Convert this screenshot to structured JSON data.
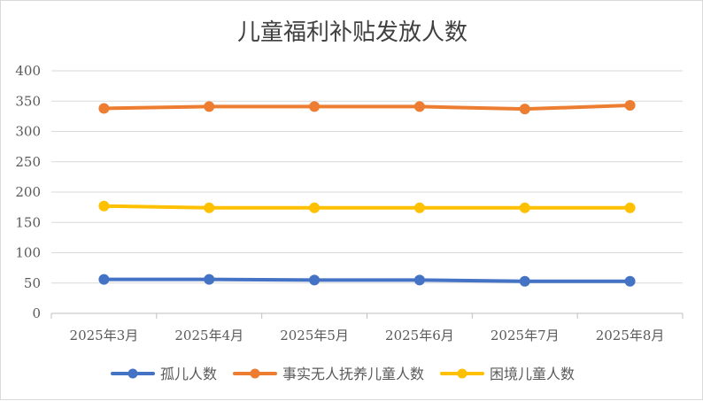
{
  "chart_data": {
    "type": "line",
    "title": "儿童福利补贴发放人数",
    "xlabel": "",
    "ylabel": "",
    "categories": [
      "2025年3月",
      "2025年4月",
      "2025年5月",
      "2025年6月",
      "2025年7月",
      "2025年8月"
    ],
    "ylim": [
      0,
      400
    ],
    "yticks": [
      0,
      50,
      100,
      150,
      200,
      250,
      300,
      350,
      400
    ],
    "grid": true,
    "legend_position": "bottom",
    "series": [
      {
        "name": "孤儿人数",
        "color": "#4472C4",
        "values": [
          56,
          56,
          55,
          55,
          53,
          53
        ]
      },
      {
        "name": "事实无人抚养儿童人数",
        "color": "#ED7D31",
        "values": [
          338,
          341,
          341,
          341,
          337,
          343
        ]
      },
      {
        "name": "困境儿童人数",
        "color": "#FFC000",
        "values": [
          177,
          174,
          174,
          174,
          174,
          174
        ]
      }
    ]
  }
}
